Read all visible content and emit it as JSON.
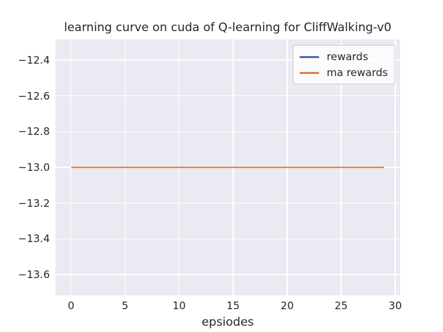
{
  "chart_data": {
    "type": "line",
    "title": "learning curve on cuda of Q-learning for CliffWalking-v0",
    "xlabel": "epsiodes",
    "ylabel": "",
    "xlim": [
      -1.45,
      30.45
    ],
    "ylim": [
      -13.715,
      -12.285
    ],
    "xticks": [
      0,
      5,
      10,
      15,
      20,
      25,
      30
    ],
    "xtick_labels": [
      "0",
      "5",
      "10",
      "15",
      "20",
      "25",
      "30"
    ],
    "yticks": [
      -12.4,
      -12.6,
      -12.8,
      -13.0,
      -13.2,
      -13.4,
      -13.6
    ],
    "ytick_labels": [
      "−12.4",
      "−12.6",
      "−12.8",
      "−13.0",
      "−13.2",
      "−13.4",
      "−13.6"
    ],
    "grid": true,
    "legend_position": "upper right",
    "series": [
      {
        "name": "rewards",
        "color": "#4C72B0",
        "x": [
          0,
          1,
          2,
          3,
          4,
          5,
          6,
          7,
          8,
          9,
          10,
          11,
          12,
          13,
          14,
          15,
          16,
          17,
          18,
          19,
          20,
          21,
          22,
          23,
          24,
          25,
          26,
          27,
          28,
          29
        ],
        "y": [
          -13,
          -13,
          -13,
          -13,
          -13,
          -13,
          -13,
          -13,
          -13,
          -13,
          -13,
          -13,
          -13,
          -13,
          -13,
          -13,
          -13,
          -13,
          -13,
          -13,
          -13,
          -13,
          -13,
          -13,
          -13,
          -13,
          -13,
          -13,
          -13,
          -13
        ]
      },
      {
        "name": "ma rewards",
        "color": "#DD8452",
        "x": [
          0,
          1,
          2,
          3,
          4,
          5,
          6,
          7,
          8,
          9,
          10,
          11,
          12,
          13,
          14,
          15,
          16,
          17,
          18,
          19,
          20,
          21,
          22,
          23,
          24,
          25,
          26,
          27,
          28,
          29
        ],
        "y": [
          -13,
          -13,
          -13,
          -13,
          -13,
          -13,
          -13,
          -13,
          -13,
          -13,
          -13,
          -13,
          -13,
          -13,
          -13,
          -13,
          -13,
          -13,
          -13,
          -13,
          -13,
          -13,
          -13,
          -13,
          -13,
          -13,
          -13,
          -13,
          -13,
          -13
        ]
      }
    ],
    "colors": {
      "plot_background": "#EAEAF2",
      "figure_background": "#FFFFFF",
      "gridline": "#FFFFFF",
      "text": "#262626",
      "legend_border": "#CCCCCC"
    }
  }
}
